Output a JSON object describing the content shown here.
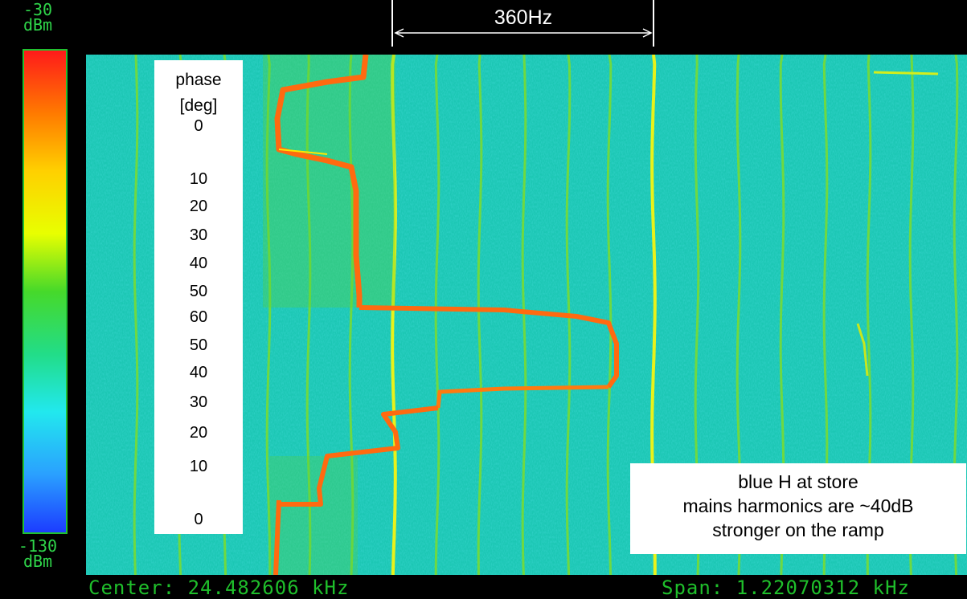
{
  "scale": {
    "top_value": "-30",
    "top_unit": "dBm",
    "bottom_value": "-130",
    "bottom_unit": "dBm",
    "colors": [
      "#ff1a1a",
      "#ff7a00",
      "#ffd000",
      "#e8ff00",
      "#46d92a",
      "#22dd88",
      "#22e8ee",
      "#2aa0ff",
      "#1c3cff"
    ]
  },
  "marker": {
    "label": "360Hz"
  },
  "phase_axis": {
    "title_line1": "phase",
    "title_line2": "[deg]",
    "ticks": [
      "0",
      "10",
      "20",
      "30",
      "40",
      "50",
      "60",
      "50",
      "40",
      "30",
      "20",
      "10",
      "0"
    ]
  },
  "annotation": {
    "line1": "blue H at store",
    "line2": "mains harmonics are ~40dB",
    "line3": "stronger on the ramp"
  },
  "status_bar": {
    "center": "Center: 24.482606 kHz",
    "span": "Span: 1.22070312 kHz"
  }
}
